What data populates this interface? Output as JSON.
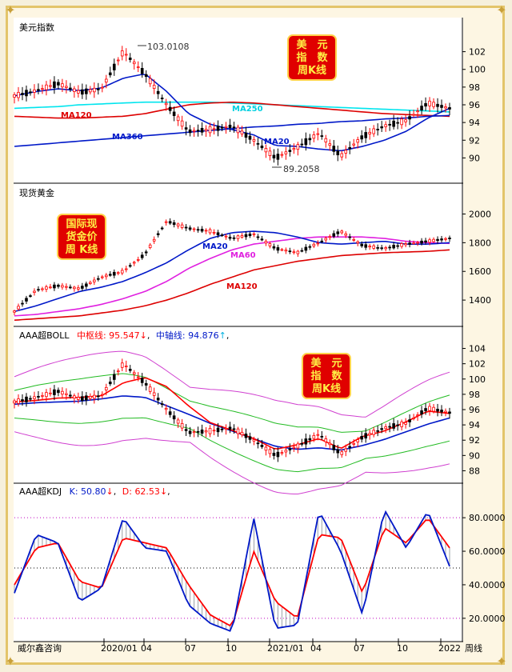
{
  "panels": {
    "p1": {
      "title": "美元指数",
      "ticks": [
        "102",
        "100",
        "98",
        "96",
        "94",
        "92",
        "90"
      ],
      "high_label": "103.0108",
      "low_label": "89.2058",
      "ma120": "MA120",
      "ma250": "MA250",
      "ma360": "MA360",
      "ma20": "MA20",
      "badge": [
        "美　元",
        "指　数",
        "周K线"
      ]
    },
    "p2": {
      "title": "现货黄金",
      "ticks": [
        "2000",
        "1800",
        "1600",
        "1400"
      ],
      "ma20": "MA20",
      "ma60": "MA60",
      "ma120": "MA120",
      "badge": [
        "国际现",
        "货金价",
        "周  K线"
      ]
    },
    "p3": {
      "title": "AAA超BOLL",
      "mid_label": "中枢线: 95.547",
      "mid_arrow": "↓",
      "axis_label": "中轴线: 94.876",
      "axis_arrow": "↑",
      "sep": ",",
      "ticks": [
        "104",
        "102",
        "100",
        "98",
        "96",
        "94",
        "92",
        "90",
        "88"
      ],
      "badge": [
        "美　元",
        "指　数",
        "周K线"
      ]
    },
    "p4": {
      "title": "AAA超KDJ",
      "k_label": "K: 50.80",
      "k_arrow": "↓",
      "d_label": "D: 62.53",
      "d_arrow": "↓",
      "sep": ",",
      "ticks": [
        "80.0000",
        "60.0000",
        "40.0000",
        "20.0000"
      ]
    }
  },
  "xaxis": {
    "labels": [
      "威尔鑫咨询",
      "2020/01",
      "04",
      "07",
      "10",
      "2021/01",
      "04",
      "07",
      "10",
      "2022",
      "周线"
    ]
  },
  "colors": {
    "up": "#ff0000",
    "down": "#000000",
    "ma120": "#dd0000",
    "ma250": "#00e5ee",
    "ma360": "#0018c8",
    "ma20": "#0018c8",
    "ma60": "#e020e0",
    "boll_mid": "#ff0000",
    "boll_in": "#22bb22",
    "boll_out": "#d040d0",
    "k": "#0018c8",
    "d": "#ff0000"
  },
  "chart_data": [
    {
      "type": "candlestick",
      "title": "美元指数",
      "ylim": [
        88.5,
        103.5
      ],
      "annotations": [
        "103.0108",
        "89.2058"
      ],
      "series": [
        {
          "name": "MA120",
          "values": [
            94.7,
            94.6,
            94.5,
            94.5,
            94.6,
            94.7,
            95.0,
            95.5,
            96.0,
            96.2,
            96.3,
            96.2,
            96.0,
            95.8,
            95.6,
            95.4,
            95.2,
            95.0,
            94.9,
            94.8,
            94.7
          ]
        },
        {
          "name": "MA250",
          "values": [
            95.6,
            95.7,
            95.8,
            96.0,
            96.1,
            96.2,
            96.3,
            96.3,
            96.3,
            96.3,
            96.2,
            96.1,
            96.0,
            95.9,
            95.8,
            95.7,
            95.6,
            95.5,
            95.4,
            95.3,
            95.2
          ]
        },
        {
          "name": "MA360",
          "values": [
            91.3,
            91.5,
            91.7,
            91.9,
            92.1,
            92.3,
            92.5,
            92.7,
            92.9,
            93.1,
            93.3,
            93.5,
            93.6,
            93.8,
            93.9,
            94.1,
            94.2,
            94.4,
            94.5,
            94.7,
            94.8
          ]
        },
        {
          "name": "MA20",
          "values": [
            97.0,
            97.5,
            97.8,
            97.6,
            97.9,
            99.0,
            99.5,
            97.5,
            95.0,
            93.8,
            93.2,
            92.6,
            91.4,
            91.3,
            91.0,
            90.8,
            91.3,
            92.0,
            93.0,
            94.5,
            95.6
          ]
        }
      ]
    },
    {
      "type": "candlestick",
      "title": "现货黄金",
      "ylim": [
        1250,
        2120
      ],
      "series": [
        {
          "name": "MA20",
          "values": [
            1320,
            1360,
            1410,
            1460,
            1490,
            1530,
            1590,
            1660,
            1750,
            1830,
            1870,
            1880,
            1870,
            1840,
            1800,
            1790,
            1800,
            1810,
            1790,
            1790,
            1800
          ]
        },
        {
          "name": "MA60",
          "values": [
            1290,
            1300,
            1320,
            1340,
            1370,
            1410,
            1460,
            1530,
            1620,
            1690,
            1750,
            1790,
            1810,
            1830,
            1840,
            1840,
            1840,
            1830,
            1810,
            1800,
            1795
          ]
        },
        {
          "name": "MA120",
          "values": [
            1260,
            1270,
            1280,
            1290,
            1310,
            1330,
            1360,
            1400,
            1450,
            1510,
            1560,
            1610,
            1640,
            1670,
            1690,
            1710,
            1720,
            1730,
            1735,
            1740,
            1750
          ]
        }
      ]
    },
    {
      "type": "line",
      "title": "AAA超BOLL",
      "ylim": [
        87,
        105
      ],
      "series": [
        {
          "name": "中枢线",
          "values": [
            97.0,
            97.2,
            97.5,
            97.6,
            97.8,
            99.5,
            100.2,
            99.0,
            96.5,
            94.3,
            93.3,
            92.2,
            90.8,
            91.4,
            92.2,
            90.9,
            92.5,
            93.2,
            94.4,
            95.8,
            95.5
          ]
        },
        {
          "name": "中轴线",
          "values": [
            96.7,
            96.9,
            97.0,
            97.1,
            97.4,
            97.8,
            97.6,
            96.5,
            95.4,
            94.2,
            93.2,
            92.2,
            91.2,
            90.8,
            91.0,
            90.7,
            91.3,
            92.1,
            93.1,
            94.1,
            94.9
          ]
        }
      ]
    },
    {
      "type": "line",
      "title": "AAA超KDJ",
      "ylim": [
        8,
        92
      ],
      "series": [
        {
          "name": "K",
          "values": [
            35,
            70,
            65,
            30,
            38,
            80,
            62,
            60,
            28,
            17,
            12,
            80,
            14,
            16,
            84,
            60,
            22,
            85,
            62,
            84,
            51
          ]
        },
        {
          "name": "D",
          "values": [
            40,
            62,
            65,
            42,
            38,
            68,
            65,
            62,
            40,
            22,
            15,
            60,
            30,
            20,
            70,
            68,
            35,
            74,
            65,
            80,
            62
          ]
        }
      ]
    }
  ]
}
